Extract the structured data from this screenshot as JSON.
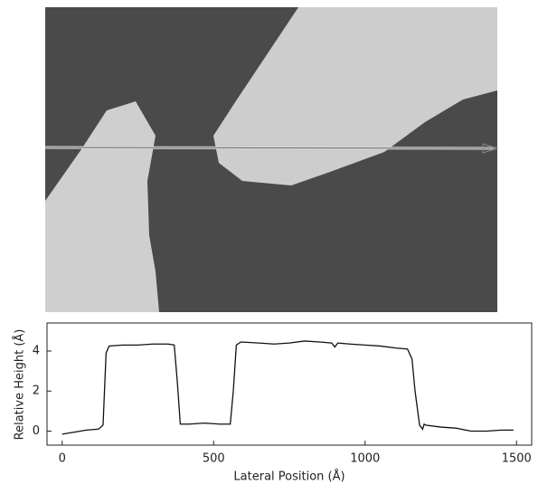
{
  "chart_data": {
    "type": "line",
    "x_label": "Lateral Position (Å)",
    "y_label": "Relative Height (Å)",
    "x": [
      0,
      40,
      80,
      120,
      135,
      145,
      155,
      200,
      250,
      300,
      350,
      370,
      380,
      390,
      420,
      470,
      520,
      555,
      565,
      575,
      590,
      650,
      700,
      750,
      800,
      850,
      890,
      900,
      910,
      950,
      1000,
      1050,
      1100,
      1140,
      1155,
      1165,
      1180,
      1190,
      1195,
      1200,
      1250,
      1300,
      1350,
      1400,
      1450,
      1490
    ],
    "values": [
      -0.15,
      -0.05,
      0.05,
      0.1,
      0.3,
      3.9,
      4.25,
      4.3,
      4.3,
      4.35,
      4.35,
      4.3,
      2.5,
      0.35,
      0.35,
      0.4,
      0.35,
      0.35,
      2.0,
      4.3,
      4.45,
      4.4,
      4.35,
      4.4,
      4.5,
      4.45,
      4.4,
      4.2,
      4.4,
      4.35,
      4.3,
      4.25,
      4.15,
      4.1,
      3.6,
      2.0,
      0.3,
      0.1,
      0.35,
      0.3,
      0.2,
      0.15,
      0.0,
      0.0,
      0.05,
      0.05
    ],
    "color": "#111111",
    "xlim": [
      -50,
      1550
    ],
    "xticks": [
      0,
      500,
      1000,
      1500
    ],
    "ylim": [
      -0.7,
      5.4
    ],
    "yticks": [
      0,
      2,
      4
    ]
  }
}
